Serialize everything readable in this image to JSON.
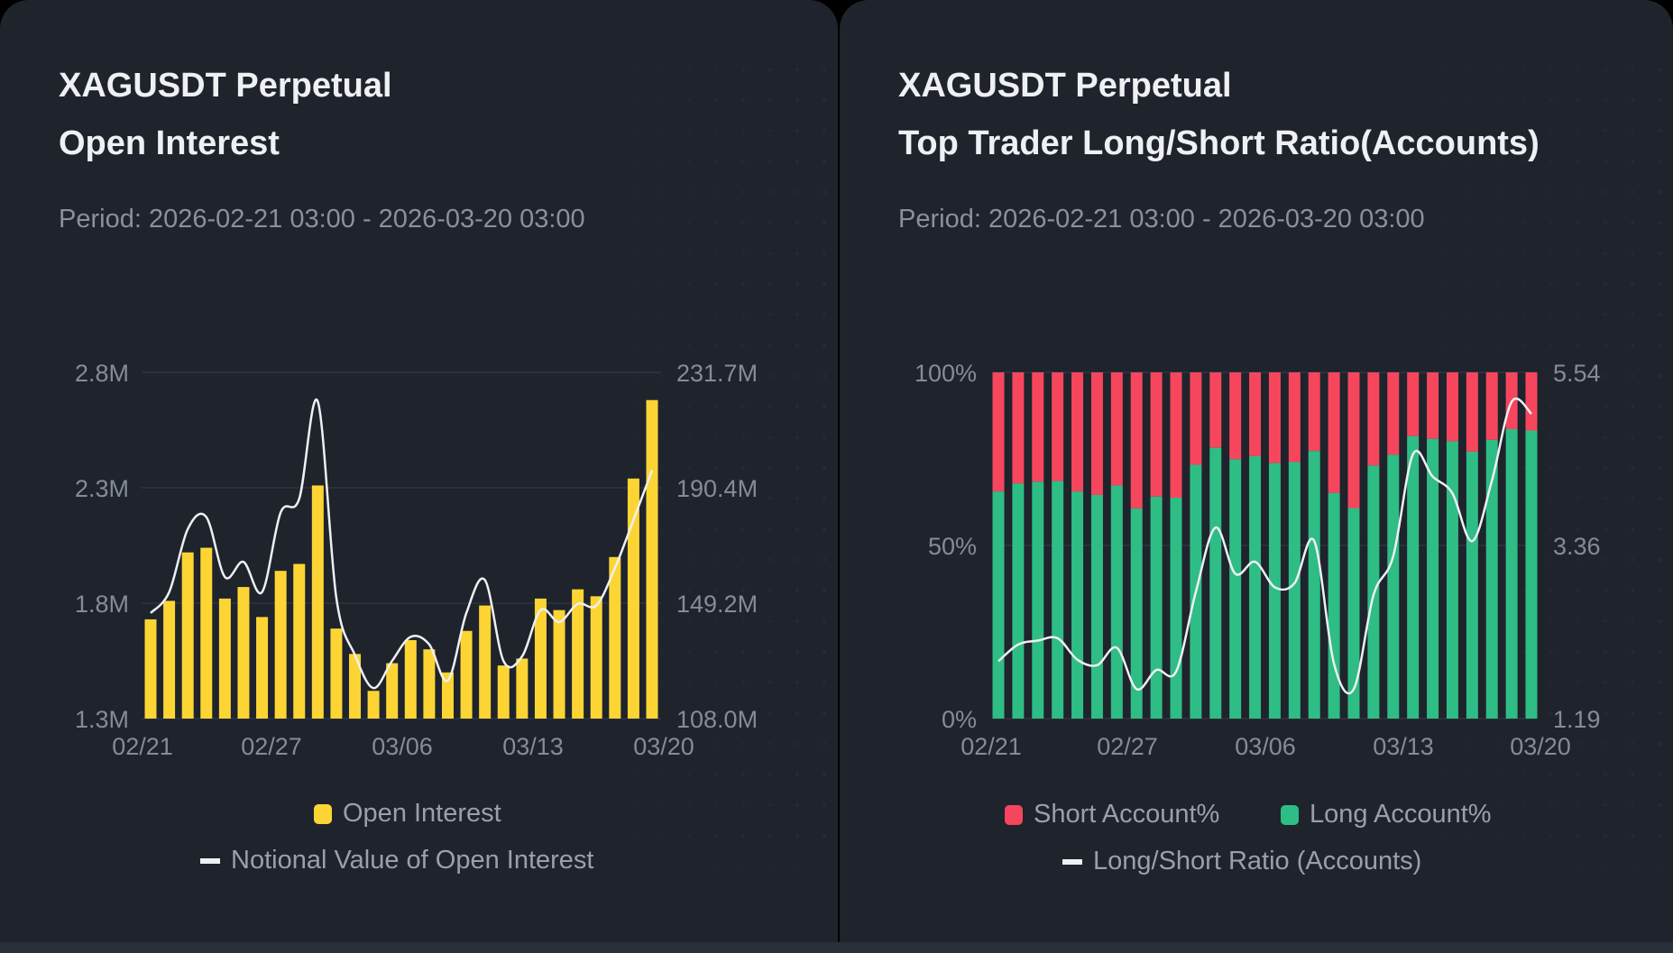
{
  "left": {
    "title1": "XAGUSDT Perpetual",
    "title2": "Open Interest",
    "period": "Period: 2026-02-21 03:00 - 2026-03-20 03:00",
    "legend": {
      "bar": "Open Interest",
      "line": "Notional Value of Open Interest"
    }
  },
  "right": {
    "title1": "XAGUSDT Perpetual",
    "title2": "Top Trader Long/Short Ratio(Accounts)",
    "period": "Period: 2026-02-21 03:00 - 2026-03-20 03:00",
    "legend": {
      "short": "Short Account%",
      "long": "Long Account%",
      "line": "Long/Short Ratio (Accounts)"
    }
  },
  "chart_data": [
    {
      "type": "bar",
      "title": "Open Interest",
      "x_ticks": [
        "02/21",
        "02/27",
        "03/06",
        "03/13",
        "03/20"
      ],
      "y_left_ticks": [
        "2.8M",
        "2.3M",
        "1.8M",
        "1.3M"
      ],
      "y_right_ticks": [
        "231.7M",
        "190.4M",
        "149.2M",
        "108.0M"
      ],
      "ylim_left": [
        1.3,
        2.8
      ],
      "ylim_right": [
        108.0,
        231.7
      ],
      "grid": true,
      "legend_placement": "bottom",
      "colors": {
        "bar": "#fcd535",
        "line": "#eef0f3"
      },
      "series": [
        {
          "name": "Open Interest",
          "unit": "M",
          "values": [
            1.73,
            1.81,
            2.02,
            2.04,
            1.82,
            1.87,
            1.74,
            1.94,
            1.97,
            2.31,
            1.69,
            1.58,
            1.42,
            1.54,
            1.64,
            1.6,
            1.5,
            1.68,
            1.79,
            1.53,
            1.56,
            1.82,
            1.77,
            1.86,
            1.83,
            2.0,
            2.34,
            2.68
          ]
        },
        {
          "name": "Notional Value of Open Interest",
          "unit": "M",
          "axis": "right",
          "values": [
            145.7,
            153.2,
            175.7,
            180.0,
            158.6,
            164.0,
            153.2,
            181.6,
            186.5,
            221.3,
            151.1,
            130.7,
            118.9,
            128.6,
            137.2,
            134.5,
            121.6,
            145.7,
            157.5,
            128.6,
            130.2,
            146.8,
            142.5,
            149.0,
            148.4,
            161.8,
            179.0,
            196.7
          ]
        }
      ]
    },
    {
      "type": "bar",
      "title": "Top Trader Long/Short Ratio(Accounts)",
      "x_ticks": [
        "02/21",
        "02/27",
        "03/06",
        "03/13",
        "03/20"
      ],
      "y_left_ticks": [
        "100%",
        "50%",
        "0%"
      ],
      "y_right_ticks": [
        "5.54",
        "3.36",
        "1.19"
      ],
      "ylim_left": [
        0,
        100
      ],
      "ylim_right": [
        1.19,
        5.54
      ],
      "grid": true,
      "legend_placement": "bottom",
      "colors": {
        "short": "#f6465d",
        "long": "#2ebd85",
        "line": "#eef0f3"
      },
      "series": [
        {
          "name": "Long Account%",
          "values": [
            65.6,
            67.9,
            68.4,
            68.6,
            65.6,
            64.6,
            67.3,
            60.7,
            64.1,
            63.8,
            73.3,
            78.2,
            74.9,
            75.8,
            73.8,
            74.1,
            77.3,
            65.2,
            60.8,
            73.1,
            76.2,
            81.6,
            80.8,
            80.1,
            77.1,
            80.5,
            83.6,
            83.2
          ]
        },
        {
          "name": "Long/Short Ratio (Accounts)",
          "axis": "right",
          "values": [
            1.91,
            2.12,
            2.17,
            2.2,
            1.93,
            1.86,
            2.08,
            1.56,
            1.8,
            1.78,
            2.78,
            3.59,
            3.01,
            3.16,
            2.84,
            2.89,
            3.42,
            1.88,
            1.56,
            2.74,
            3.23,
            4.51,
            4.23,
            4.02,
            3.42,
            4.18,
            5.17,
            5.02
          ]
        }
      ]
    }
  ]
}
